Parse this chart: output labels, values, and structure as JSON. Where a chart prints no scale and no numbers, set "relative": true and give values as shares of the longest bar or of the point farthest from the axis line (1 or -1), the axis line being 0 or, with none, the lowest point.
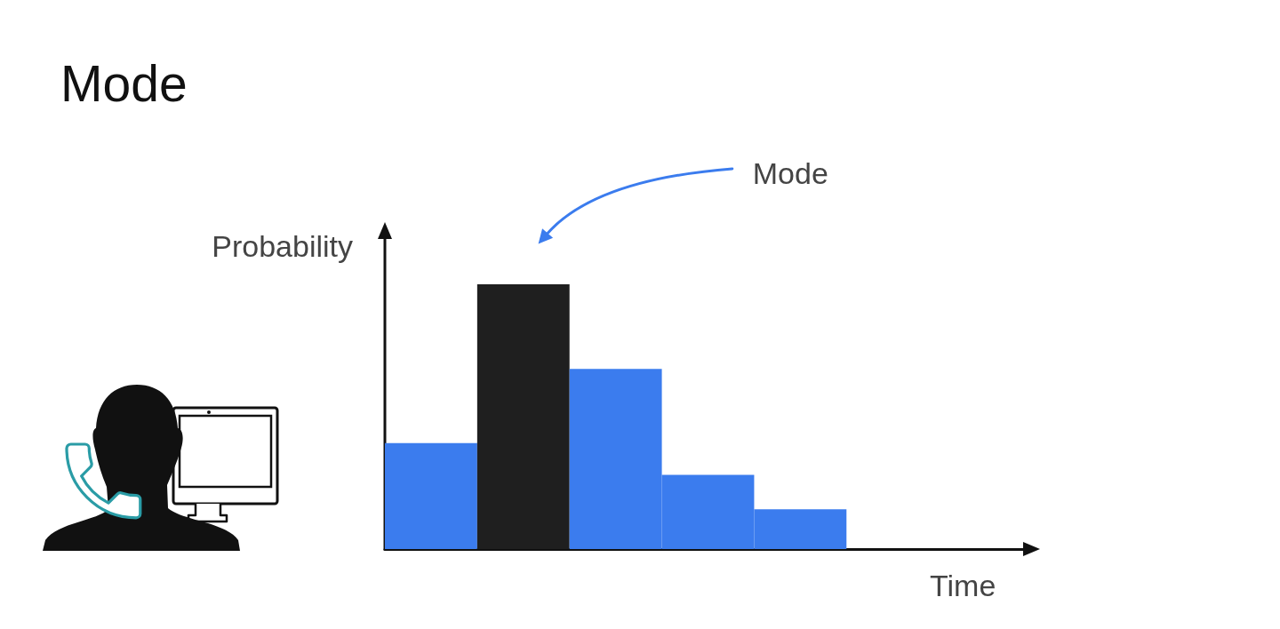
{
  "chart_data": {
    "type": "bar",
    "title": "Mode",
    "xlabel": "Time",
    "ylabel": "Probability",
    "annotations": [
      "Mode"
    ],
    "categories": [
      null,
      null,
      null,
      null,
      null
    ],
    "values": [
      0.4,
      1,
      0.68,
      0.28,
      0.15
    ],
    "colors": [
      "#3b7cee",
      "#1f1f1f",
      "#3b7cee",
      "#3b7cee",
      "#3b7cee"
    ],
    "relative": true
  }
}
